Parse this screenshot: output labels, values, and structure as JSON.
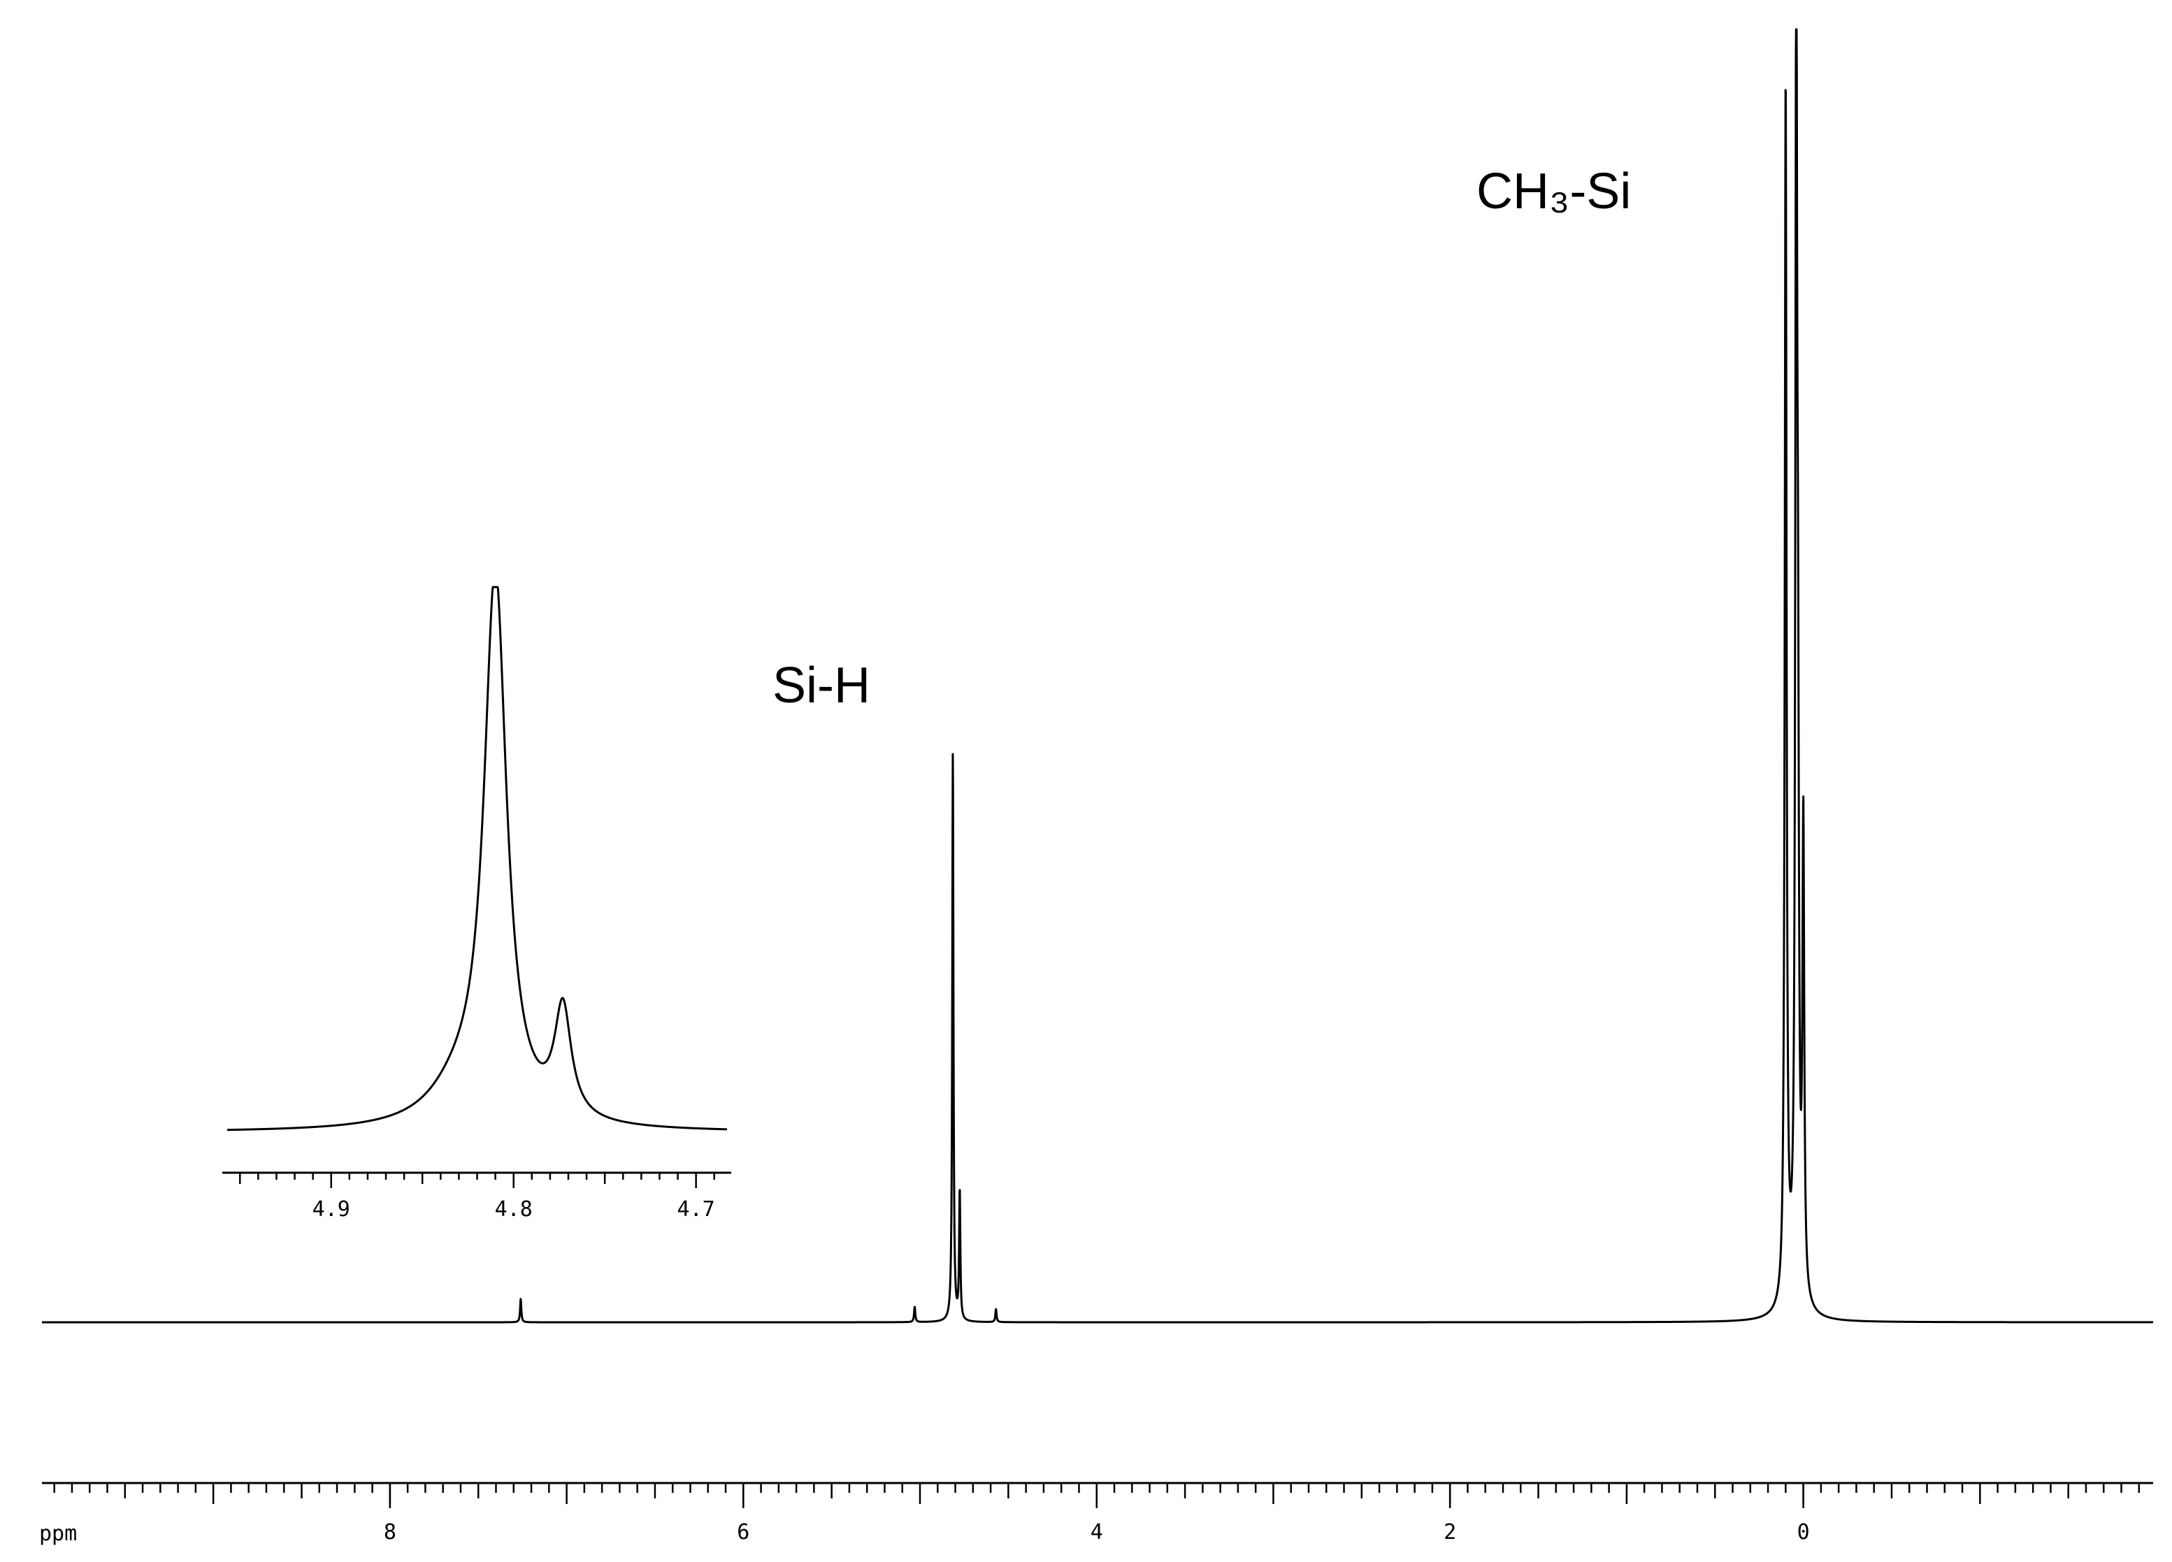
{
  "chart_data": [
    {
      "type": "line",
      "subtype": "nmr-spectrum",
      "xlabel": "ppm",
      "x_axis_reversed": true,
      "xlim": [
        9.97,
        -1.98
      ],
      "ticks": [
        8,
        6,
        4,
        2,
        0
      ],
      "tick_labels": [
        "8",
        "6",
        "4",
        "2",
        "0"
      ],
      "grid": false,
      "peaks": [
        {
          "label": "CH₃-Si",
          "shift": 0.0,
          "components": [
            {
              "shift": 0.1,
              "height": 0.94
            },
            {
              "shift": 0.04,
              "height": 1.0
            },
            {
              "shift": 0.03,
              "height": 0.33
            },
            {
              "shift": 0.0,
              "height": 0.36
            }
          ]
        },
        {
          "label": "Si-H",
          "shift": 4.81,
          "components": [
            {
              "shift": 4.814,
              "height": 0.44
            },
            {
              "shift": 4.775,
              "height": 0.1
            }
          ]
        },
        {
          "label": "",
          "shift": 5.03,
          "components": [
            {
              "shift": 5.03,
              "height": 0.012
            }
          ]
        },
        {
          "label": "",
          "shift": 4.57,
          "components": [
            {
              "shift": 4.57,
              "height": 0.01
            }
          ]
        },
        {
          "label": "",
          "shift": 7.26,
          "components": [
            {
              "shift": 7.26,
              "height": 0.018
            }
          ]
        }
      ]
    },
    {
      "type": "line",
      "subtype": "nmr-inset",
      "x_axis_reversed": true,
      "xlim": [
        4.957,
        4.683
      ],
      "ticks": [
        4.9,
        4.8,
        4.7
      ],
      "tick_labels": [
        "4.9",
        "4.8",
        "4.7"
      ],
      "grid": false,
      "peaks": [
        {
          "shift": 4.81,
          "height": 1.0
        },
        {
          "shift": 4.773,
          "height": 0.2
        },
        {
          "shift": 4.83,
          "height": 0.06
        }
      ]
    }
  ],
  "annotations": {
    "ch3si_label": "CH₃-Si",
    "sih_label": "Si-H"
  },
  "colors": {
    "trace": "#000000",
    "background": "#ffffff"
  }
}
